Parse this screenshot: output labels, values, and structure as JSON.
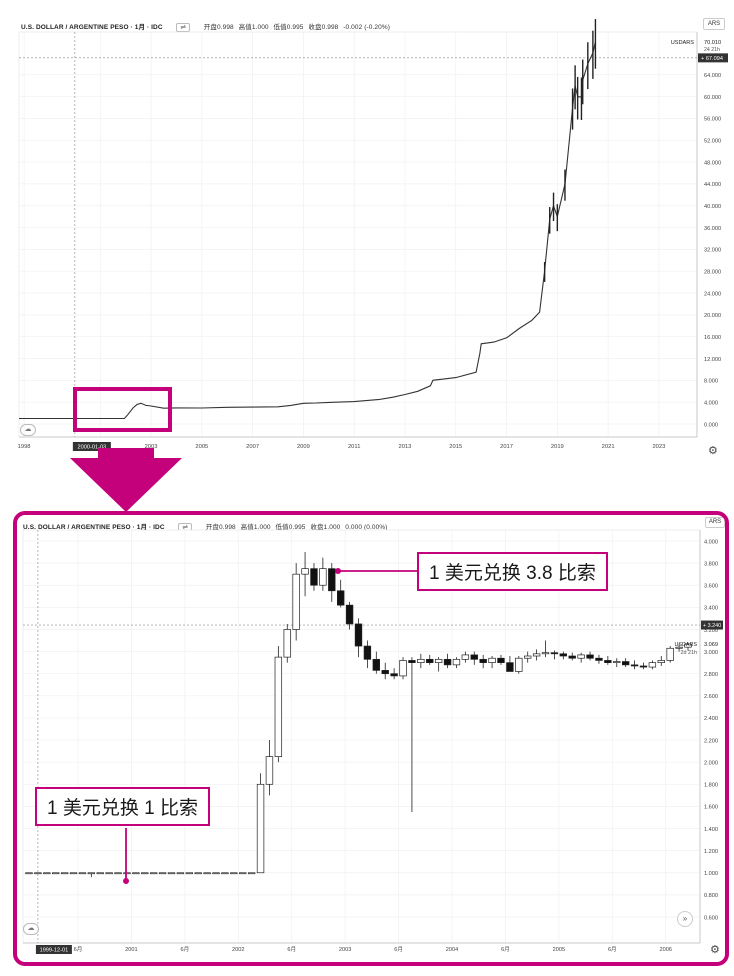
{
  "colors": {
    "accent": "#c4007a",
    "up": "#ffffff",
    "down": "#111111",
    "grid": "#eeeeee"
  },
  "top_pane": {
    "symbol_title": "U.S. DOLLAR / ARGENTINE PESO · 1月 · IDC",
    "ohlc": {
      "open": "开盘0.998",
      "high": "高值1.000",
      "low": "低值0.995",
      "close": "收盘0.998",
      "change": "-0.002 (-0.20%)"
    },
    "currency_button": "ARS",
    "symbol_tag": "USDARS",
    "last_price": "70.010",
    "countdown": "24 21h",
    "crosshair_price": "67.094",
    "cursor_date": "2000-01-03",
    "y_ticks": [
      "64.000",
      "60.000",
      "56.000",
      "52.000",
      "48.000",
      "44.000",
      "40.000",
      "36.000",
      "32.000",
      "28.000",
      "24.000",
      "20.000",
      "16.000",
      "12.000",
      "8.000",
      "4.000",
      "0.000"
    ],
    "x_ticks": [
      "1998",
      "2001",
      "2003",
      "2005",
      "2007",
      "2009",
      "2011",
      "2013",
      "2015",
      "2017",
      "2019",
      "2021",
      "2023"
    ]
  },
  "bottom_pane": {
    "symbol_title": "U.S. DOLLAR / ARGENTINE PESO · 1月 · IDC",
    "ohlc": {
      "open": "开盘0.998",
      "high": "高值1.000",
      "low": "低值0.995",
      "close": "收盘1.000",
      "change": "0.000 (0.00%)"
    },
    "currency_button": "ARS",
    "symbol_tag": "USDARS",
    "last_price": "3.069",
    "countdown": "2d 21h",
    "crosshair_price": "3.240",
    "cursor_date": "1999-12-01",
    "y_ticks": [
      "4.000",
      "3.800",
      "3.600",
      "3.400",
      "3.200",
      "3.000",
      "2.800",
      "2.600",
      "2.400",
      "2.200",
      "2.000",
      "1.800",
      "1.600",
      "1.400",
      "1.200",
      "1.000",
      "0.800",
      "0.600"
    ],
    "x_ticks": [
      "6月",
      "2001",
      "6月",
      "2002",
      "6月",
      "2003",
      "6月",
      "2004",
      "6月",
      "2005",
      "6月",
      "2006"
    ]
  },
  "annotations": {
    "high_callout": "1 美元兑换 3.8 比索",
    "low_callout": "1 美元兑换 1 比索"
  },
  "chart_data": [
    {
      "type": "line",
      "title": "U.S. DOLLAR / ARGENTINE PESO · 1月 · IDC",
      "xlabel": "",
      "ylabel": "",
      "ylim": [
        0,
        70
      ],
      "xlim": [
        1997.8,
        2024.5
      ],
      "grid": true,
      "series": [
        {
          "name": "USDARS",
          "x": [
            1997.8,
            1999.9,
            2000.0,
            2000.9,
            2001.5,
            2001.95,
            2002.1,
            2002.3,
            2002.45,
            2002.6,
            2002.8,
            2003.0,
            2003.5,
            2004.0,
            2005.0,
            2006.0,
            2007.0,
            2008.0,
            2008.5,
            2009.0,
            2009.5,
            2010.0,
            2011.0,
            2012.0,
            2012.5,
            2013.0,
            2013.5,
            2014.0,
            2014.1,
            2015.0,
            2015.8,
            2015.95,
            2016.0,
            2016.5,
            2017.0,
            2017.5,
            2018.0,
            2018.3,
            2018.5,
            2018.7,
            2018.85,
            2019.0,
            2019.3,
            2019.6,
            2019.7,
            2019.8,
            2019.95,
            2020.0,
            2020.2,
            2020.4,
            2020.5
          ],
          "values": [
            1.0,
            1.0,
            1.0,
            1.0,
            1.0,
            1.0,
            1.8,
            3.0,
            3.6,
            3.8,
            3.4,
            3.3,
            2.9,
            2.95,
            2.93,
            3.06,
            3.1,
            3.15,
            3.4,
            3.8,
            3.85,
            3.95,
            4.1,
            4.5,
            4.9,
            5.4,
            6.0,
            7.0,
            8.0,
            8.5,
            9.5,
            13.0,
            14.7,
            15.0,
            15.8,
            17.5,
            19.0,
            20.5,
            28.0,
            37.5,
            40.0,
            38.0,
            44.0,
            58.0,
            62.0,
            60.0,
            59.9,
            63.0,
            66.0,
            68.0,
            70.0
          ]
        }
      ]
    },
    {
      "type": "bar",
      "title": "U.S. DOLLAR / ARGENTINE PESO · 1月 · IDC",
      "xlabel": "",
      "ylabel": "",
      "ylim": [
        0.55,
        4.1
      ],
      "grid": true,
      "series": [
        {
          "name": "USDARS",
          "candles": [
            {
              "t": 0,
              "o": 1.0,
              "h": 1.0,
              "l": 0.995,
              "c": 1.0
            },
            {
              "t": 1,
              "o": 1.0,
              "h": 1.0,
              "l": 0.995,
              "c": 1.0
            },
            {
              "t": 2,
              "o": 1.0,
              "h": 1.0,
              "l": 0.995,
              "c": 1.0
            },
            {
              "t": 3,
              "o": 1.0,
              "h": 1.0,
              "l": 0.995,
              "c": 1.0
            },
            {
              "t": 4,
              "o": 1.0,
              "h": 1.0,
              "l": 0.995,
              "c": 1.0
            },
            {
              "t": 5,
              "o": 1.0,
              "h": 1.0,
              "l": 0.995,
              "c": 1.0
            },
            {
              "t": 6,
              "o": 1.0,
              "h": 1.0,
              "l": 0.995,
              "c": 1.0
            },
            {
              "t": 7,
              "o": 1.0,
              "h": 1.0,
              "l": 0.96,
              "c": 1.0
            },
            {
              "t": 8,
              "o": 1.0,
              "h": 1.0,
              "l": 0.995,
              "c": 1.0
            },
            {
              "t": 9,
              "o": 1.0,
              "h": 1.0,
              "l": 0.995,
              "c": 1.0
            },
            {
              "t": 10,
              "o": 1.0,
              "h": 1.0,
              "l": 0.995,
              "c": 1.0
            },
            {
              "t": 11,
              "o": 1.0,
              "h": 1.0,
              "l": 0.995,
              "c": 1.0
            },
            {
              "t": 12,
              "o": 1.0,
              "h": 1.0,
              "l": 0.995,
              "c": 1.0
            },
            {
              "t": 13,
              "o": 1.0,
              "h": 1.0,
              "l": 0.995,
              "c": 1.0
            },
            {
              "t": 14,
              "o": 1.0,
              "h": 1.0,
              "l": 0.995,
              "c": 1.0
            },
            {
              "t": 15,
              "o": 1.0,
              "h": 1.0,
              "l": 0.995,
              "c": 1.0
            },
            {
              "t": 16,
              "o": 1.0,
              "h": 1.0,
              "l": 0.995,
              "c": 1.0
            },
            {
              "t": 17,
              "o": 1.0,
              "h": 1.0,
              "l": 0.995,
              "c": 1.0
            },
            {
              "t": 18,
              "o": 1.0,
              "h": 1.0,
              "l": 0.995,
              "c": 1.0
            },
            {
              "t": 19,
              "o": 1.0,
              "h": 1.0,
              "l": 0.995,
              "c": 1.0
            },
            {
              "t": 20,
              "o": 1.0,
              "h": 1.0,
              "l": 0.995,
              "c": 1.0
            },
            {
              "t": 21,
              "o": 1.0,
              "h": 1.0,
              "l": 0.995,
              "c": 1.0
            },
            {
              "t": 22,
              "o": 1.0,
              "h": 1.0,
              "l": 0.995,
              "c": 1.0
            },
            {
              "t": 23,
              "o": 1.0,
              "h": 1.0,
              "l": 0.995,
              "c": 1.0
            },
            {
              "t": 24,
              "o": 1.0,
              "h": 1.0,
              "l": 0.995,
              "c": 1.0
            },
            {
              "t": 25,
              "o": 1.0,
              "h": 1.0,
              "l": 0.995,
              "c": 1.0
            },
            {
              "t": 26,
              "o": 1.0,
              "h": 1.9,
              "l": 1.0,
              "c": 1.8
            },
            {
              "t": 27,
              "o": 1.8,
              "h": 2.2,
              "l": 1.7,
              "c": 2.05
            },
            {
              "t": 28,
              "o": 2.05,
              "h": 3.05,
              "l": 2.0,
              "c": 2.95
            },
            {
              "t": 29,
              "o": 2.95,
              "h": 3.25,
              "l": 2.9,
              "c": 3.2
            },
            {
              "t": 30,
              "o": 3.2,
              "h": 3.8,
              "l": 3.1,
              "c": 3.7
            },
            {
              "t": 31,
              "o": 3.7,
              "h": 3.9,
              "l": 3.5,
              "c": 3.75
            },
            {
              "t": 32,
              "o": 3.75,
              "h": 3.8,
              "l": 3.55,
              "c": 3.6
            },
            {
              "t": 33,
              "o": 3.6,
              "h": 3.85,
              "l": 3.55,
              "c": 3.75
            },
            {
              "t": 34,
              "o": 3.75,
              "h": 3.8,
              "l": 3.45,
              "c": 3.55
            },
            {
              "t": 35,
              "o": 3.55,
              "h": 3.65,
              "l": 3.4,
              "c": 3.42
            },
            {
              "t": 36,
              "o": 3.42,
              "h": 3.45,
              "l": 3.2,
              "c": 3.25
            },
            {
              "t": 37,
              "o": 3.25,
              "h": 3.3,
              "l": 2.95,
              "c": 3.05
            },
            {
              "t": 38,
              "o": 3.05,
              "h": 3.1,
              "l": 2.85,
              "c": 2.93
            },
            {
              "t": 39,
              "o": 2.93,
              "h": 3.0,
              "l": 2.8,
              "c": 2.83
            },
            {
              "t": 40,
              "o": 2.83,
              "h": 2.9,
              "l": 2.75,
              "c": 2.8
            },
            {
              "t": 41,
              "o": 2.8,
              "h": 2.85,
              "l": 2.75,
              "c": 2.78
            },
            {
              "t": 42,
              "o": 2.78,
              "h": 2.95,
              "l": 2.75,
              "c": 2.92
            },
            {
              "t": 43,
              "o": 2.92,
              "h": 2.95,
              "l": 1.55,
              "c": 2.9
            },
            {
              "t": 44,
              "o": 2.9,
              "h": 2.98,
              "l": 2.85,
              "c": 2.93
            },
            {
              "t": 45,
              "o": 2.93,
              "h": 2.97,
              "l": 2.88,
              "c": 2.9
            },
            {
              "t": 46,
              "o": 2.9,
              "h": 2.95,
              "l": 2.82,
              "c": 2.93
            },
            {
              "t": 47,
              "o": 2.93,
              "h": 2.98,
              "l": 2.85,
              "c": 2.88
            },
            {
              "t": 48,
              "o": 2.88,
              "h": 2.95,
              "l": 2.85,
              "c": 2.93
            },
            {
              "t": 49,
              "o": 2.93,
              "h": 3.0,
              "l": 2.9,
              "c": 2.97
            },
            {
              "t": 50,
              "o": 2.97,
              "h": 3.0,
              "l": 2.88,
              "c": 2.93
            },
            {
              "t": 51,
              "o": 2.93,
              "h": 2.97,
              "l": 2.85,
              "c": 2.9
            },
            {
              "t": 52,
              "o": 2.9,
              "h": 2.96,
              "l": 2.85,
              "c": 2.94
            },
            {
              "t": 53,
              "o": 2.94,
              "h": 2.97,
              "l": 2.88,
              "c": 2.9
            },
            {
              "t": 54,
              "o": 2.9,
              "h": 2.96,
              "l": 2.85,
              "c": 2.82
            },
            {
              "t": 55,
              "o": 2.82,
              "h": 2.96,
              "l": 2.8,
              "c": 2.94
            },
            {
              "t": 56,
              "o": 2.94,
              "h": 3.0,
              "l": 2.9,
              "c": 2.96
            },
            {
              "t": 57,
              "o": 2.96,
              "h": 3.02,
              "l": 2.92,
              "c": 2.98
            },
            {
              "t": 58,
              "o": 2.98,
              "h": 3.1,
              "l": 2.95,
              "c": 2.99
            },
            {
              "t": 59,
              "o": 2.99,
              "h": 3.01,
              "l": 2.93,
              "c": 2.98
            },
            {
              "t": 60,
              "o": 2.98,
              "h": 3.0,
              "l": 2.93,
              "c": 2.96
            },
            {
              "t": 61,
              "o": 2.96,
              "h": 2.99,
              "l": 2.92,
              "c": 2.94
            },
            {
              "t": 62,
              "o": 2.94,
              "h": 2.99,
              "l": 2.9,
              "c": 2.97
            },
            {
              "t": 63,
              "o": 2.97,
              "h": 3.0,
              "l": 2.92,
              "c": 2.94
            },
            {
              "t": 64,
              "o": 2.94,
              "h": 2.97,
              "l": 2.89,
              "c": 2.92
            },
            {
              "t": 65,
              "o": 2.92,
              "h": 2.96,
              "l": 2.88,
              "c": 2.9
            },
            {
              "t": 66,
              "o": 2.9,
              "h": 2.94,
              "l": 2.86,
              "c": 2.91
            },
            {
              "t": 67,
              "o": 2.91,
              "h": 2.94,
              "l": 2.86,
              "c": 2.88
            },
            {
              "t": 68,
              "o": 2.88,
              "h": 2.92,
              "l": 2.84,
              "c": 2.87
            },
            {
              "t": 69,
              "o": 2.87,
              "h": 2.9,
              "l": 2.84,
              "c": 2.86
            },
            {
              "t": 70,
              "o": 2.86,
              "h": 2.92,
              "l": 2.84,
              "c": 2.9
            },
            {
              "t": 71,
              "o": 2.9,
              "h": 2.96,
              "l": 2.87,
              "c": 2.92
            },
            {
              "t": 72,
              "o": 2.92,
              "h": 3.05,
              "l": 2.9,
              "c": 3.03
            },
            {
              "t": 73,
              "o": 3.03,
              "h": 3.07,
              "l": 3.0,
              "c": 3.04
            },
            {
              "t": 74,
              "o": 3.04,
              "h": 3.08,
              "l": 3.01,
              "c": 3.069
            }
          ],
          "x_labels": [
            "6月",
            "2001",
            "6月",
            "2002",
            "6月",
            "2003",
            "6月",
            "2004",
            "6月",
            "2005",
            "6月",
            "2006"
          ]
        }
      ]
    }
  ]
}
